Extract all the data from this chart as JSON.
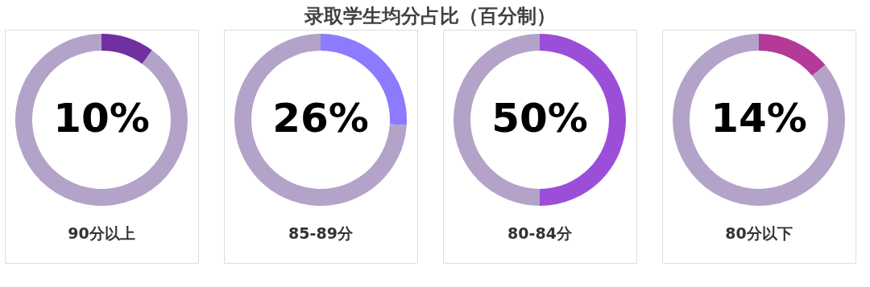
{
  "chart_data": [
    {
      "type": "donut",
      "title": "录取学生均分占比（百分制）",
      "xlabel": "90分以上",
      "categories": [
        null,
        null
      ],
      "values": [
        10,
        90
      ],
      "colors": [
        "#7030a0",
        "#b3a3c9"
      ],
      "value_labels": [
        "10%",
        null
      ],
      "legend": false
    },
    {
      "type": "donut",
      "xlabel": "85-89分",
      "categories": [
        null,
        null
      ],
      "values": [
        26,
        74
      ],
      "colors": [
        "#8c7bff",
        "#b3a3c9"
      ],
      "value_labels": [
        "26%",
        null
      ],
      "legend": false
    },
    {
      "type": "donut",
      "xlabel": "80-84分",
      "categories": [
        null,
        null
      ],
      "values": [
        50,
        50
      ],
      "colors": [
        "#9b4fd8",
        "#b3a3c9"
      ],
      "value_labels": [
        "50%",
        null
      ],
      "legend": false
    },
    {
      "type": "donut",
      "xlabel": "80分以下",
      "categories": [
        null,
        null
      ],
      "values": [
        14,
        86
      ],
      "colors": [
        "#b33a96",
        "#b3a3c9"
      ],
      "value_labels": [
        "14%",
        null
      ],
      "legend": false
    }
  ]
}
